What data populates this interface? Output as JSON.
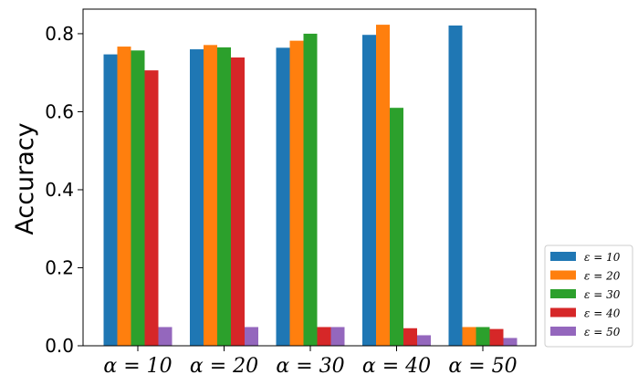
{
  "chart_data": {
    "type": "bar",
    "title": "",
    "xlabel": "",
    "ylabel": "Accuracy",
    "categories": [
      "α = 10",
      "α = 20",
      "α = 30",
      "α = 40",
      "α = 50"
    ],
    "series": [
      {
        "name": "ε = 10",
        "color": "#1f77b4",
        "values": [
          0.747,
          0.76,
          0.764,
          0.797,
          0.821
        ]
      },
      {
        "name": "ε = 20",
        "color": "#ff7f0e",
        "values": [
          0.767,
          0.771,
          0.782,
          0.823,
          0.048
        ]
      },
      {
        "name": "ε = 30",
        "color": "#2ca02c",
        "values": [
          0.757,
          0.765,
          0.8,
          0.61,
          0.048
        ]
      },
      {
        "name": "ε = 40",
        "color": "#d62728",
        "values": [
          0.706,
          0.739,
          0.048,
          0.045,
          0.043
        ]
      },
      {
        "name": "ε = 50",
        "color": "#9467bd",
        "values": [
          0.048,
          0.048,
          0.048,
          0.027,
          0.02
        ]
      }
    ],
    "ylim": [
      0,
      0.863
    ],
    "yticks": [
      0.0,
      0.2,
      0.4,
      0.6,
      0.8
    ],
    "ytick_labels": [
      "0.0",
      "0.2",
      "0.4",
      "0.6",
      "0.8"
    ],
    "grid": false,
    "legend_position": "lower-right-outside"
  }
}
